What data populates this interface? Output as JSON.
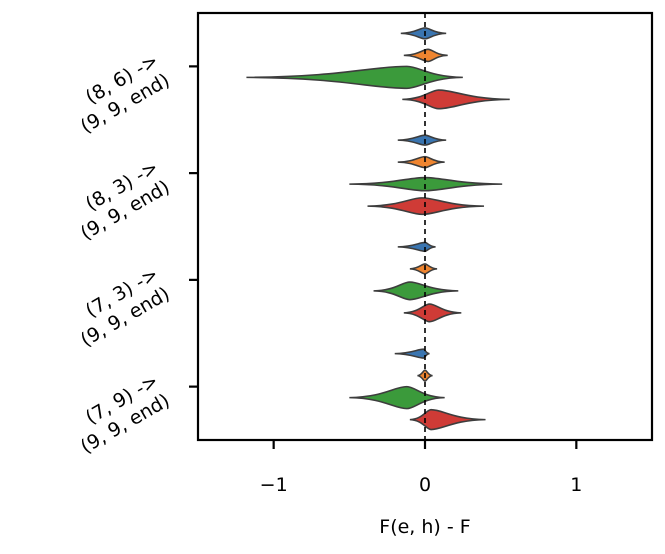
{
  "chart_data": {
    "type": "violin",
    "orientation": "horizontal",
    "xlabel": "F(e, h) - F",
    "ylabel": "",
    "xlim": [
      -1.5,
      1.5
    ],
    "xticks": [
      -1,
      0,
      1
    ],
    "xtick_labels": [
      "−1",
      "0",
      "1"
    ],
    "reference_line": {
      "x": 0,
      "style": "dashed"
    },
    "grid": false,
    "categories": [
      {
        "line1": "(8, 6) ->",
        "line2": "(9, 9, end)"
      },
      {
        "line1": "(8, 3) ->",
        "line2": "(9, 9, end)"
      },
      {
        "line1": "(7, 3) ->",
        "line2": "(9, 9, end)"
      },
      {
        "line1": "(7, 9) ->",
        "line2": "(9, 9, end)"
      }
    ],
    "series_colors": [
      "#3a75b0",
      "#ef8530",
      "#3b9a3b",
      "#cf3b36"
    ],
    "violins": [
      [
        {
          "min": -0.16,
          "max": 0.14,
          "peak": 0.0,
          "width": 0.5
        },
        {
          "min": -0.14,
          "max": 0.15,
          "peak": 0.02,
          "width": 0.55
        },
        {
          "min": -1.18,
          "max": 0.25,
          "peak": -0.12,
          "width": 1.0
        },
        {
          "min": -0.15,
          "max": 0.56,
          "peak": 0.09,
          "width": 0.85
        }
      ],
      [
        {
          "min": -0.18,
          "max": 0.14,
          "peak": 0.0,
          "width": 0.45
        },
        {
          "min": -0.18,
          "max": 0.13,
          "peak": 0.0,
          "width": 0.5
        },
        {
          "min": -0.5,
          "max": 0.51,
          "peak": 0.0,
          "width": 0.6
        },
        {
          "min": -0.38,
          "max": 0.39,
          "peak": -0.02,
          "width": 0.75
        }
      ],
      [
        {
          "min": -0.18,
          "max": 0.07,
          "peak": 0.0,
          "width": 0.4
        },
        {
          "min": -0.1,
          "max": 0.08,
          "peak": 0.0,
          "width": 0.45
        },
        {
          "min": -0.34,
          "max": 0.22,
          "peak": -0.1,
          "width": 0.8
        },
        {
          "min": -0.14,
          "max": 0.24,
          "peak": 0.03,
          "width": 0.8
        }
      ],
      [
        {
          "min": -0.2,
          "max": 0.03,
          "peak": -0.01,
          "width": 0.4
        },
        {
          "min": -0.05,
          "max": 0.05,
          "peak": 0.0,
          "width": 0.5
        },
        {
          "min": -0.5,
          "max": 0.13,
          "peak": -0.12,
          "width": 1.0
        },
        {
          "min": -0.1,
          "max": 0.4,
          "peak": 0.04,
          "width": 0.9
        }
      ]
    ]
  }
}
